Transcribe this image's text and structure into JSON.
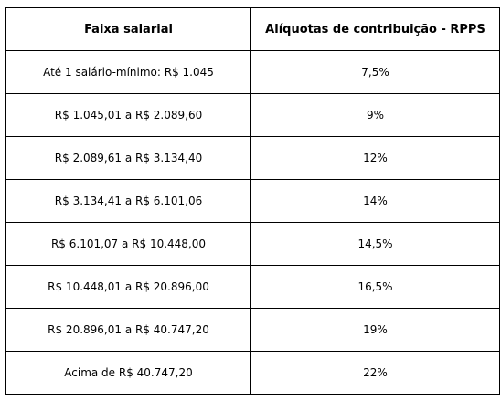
{
  "table": {
    "headers": [
      "Faixa salarial",
      "Alíquotas de contribuição - RPPS"
    ],
    "rows": [
      {
        "faixa": "Até 1 salário-mínimo: R$ 1.045",
        "aliquota": "7,5%"
      },
      {
        "faixa": "R$ 1.045,01 a R$ 2.089,60",
        "aliquota": "9%"
      },
      {
        "faixa": "R$ 2.089,61 a R$ 3.134,40",
        "aliquota": "12%"
      },
      {
        "faixa": "R$ 3.134,41 a R$ 6.101,06",
        "aliquota": "14%"
      },
      {
        "faixa": "R$ 6.101,07 a R$ 10.448,00",
        "aliquota": "14,5%"
      },
      {
        "faixa": "R$ 10.448,01 a R$ 20.896,00",
        "aliquota": "16,5%"
      },
      {
        "faixa": "R$ 20.896,01 a R$ 40.747,20",
        "aliquota": "19%"
      },
      {
        "faixa": "Acima de R$ 40.747,20",
        "aliquota": "22%"
      }
    ]
  }
}
